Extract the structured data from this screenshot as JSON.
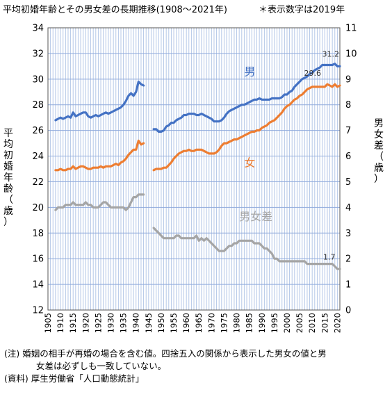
{
  "title": "平均初婚年齢とその男女差の長期推移(1908～2021年)",
  "note": "＊表示数字は2019年",
  "footer": {
    "line1": "(注) 婚姻の相手が再婚の場合を含む値。四捨五入の関係から表示した男女の値と男",
    "line2": "女差は必ずしも一致していない。",
    "line3": "(資料) 厚生労働省「人口動態統計」"
  },
  "chart_data": {
    "type": "line",
    "ylabel_left": [
      "平",
      "均",
      "初",
      "婚",
      "年",
      "齢",
      "（",
      "歳",
      "）"
    ],
    "ylabel_right": [
      "男",
      "女",
      "差",
      "（",
      "歳",
      "）"
    ],
    "ylim_left": [
      12,
      34
    ],
    "ylim_right": [
      0,
      11
    ],
    "yticks_left": [
      12,
      14,
      16,
      18,
      20,
      22,
      24,
      26,
      28,
      30,
      32,
      34
    ],
    "yticks_right": [
      0,
      1,
      2,
      3,
      4,
      5,
      6,
      7,
      8,
      9,
      10,
      11
    ],
    "xlim": [
      1905,
      2021
    ],
    "xtick_labels": [
      "1905",
      "1910",
      "1915",
      "1920",
      "1925",
      "1930",
      "1935",
      "1940",
      "1945",
      "1950",
      "1955",
      "1960",
      "1965",
      "1970",
      "1975",
      "1980",
      "1985",
      "1990",
      "1995",
      "2000",
      "2005",
      "2010",
      "2015",
      "2020"
    ],
    "grid": true,
    "colors": {
      "male": "#4472c4",
      "female": "#ed7d31",
      "gap": "#a5a5a5"
    },
    "series": [
      {
        "name": "男",
        "key": "male",
        "axis": "left",
        "segments": [
          {
            "x": [
              1908,
              1909,
              1910,
              1911,
              1912,
              1913,
              1914,
              1915,
              1916,
              1917,
              1918,
              1919,
              1920,
              1921,
              1922,
              1923,
              1924,
              1925,
              1926,
              1927,
              1928,
              1929,
              1930,
              1931,
              1932,
              1933,
              1934,
              1935,
              1936,
              1937,
              1938,
              1939,
              1940,
              1941,
              1942,
              1943
            ],
            "y": [
              26.8,
              26.9,
              27.0,
              26.9,
              27.0,
              27.1,
              27.0,
              27.4,
              27.1,
              27.2,
              27.3,
              27.4,
              27.4,
              27.1,
              27.0,
              27.1,
              27.2,
              27.1,
              27.2,
              27.3,
              27.4,
              27.3,
              27.4,
              27.5,
              27.6,
              27.7,
              27.8,
              28.0,
              28.3,
              28.7,
              28.9,
              28.7,
              29.0,
              29.8,
              29.6,
              29.5
            ]
          },
          {
            "x": [
              1947,
              1948,
              1949,
              1950,
              1951,
              1952,
              1953,
              1954,
              1955,
              1956,
              1957,
              1958,
              1959,
              1960,
              1961,
              1962,
              1963,
              1964,
              1965,
              1966,
              1967,
              1968,
              1969,
              1970,
              1971,
              1972,
              1973,
              1974,
              1975,
              1976,
              1977,
              1978,
              1979,
              1980,
              1981,
              1982,
              1983,
              1984,
              1985,
              1986,
              1987,
              1988,
              1989,
              1990,
              1991,
              1992,
              1993,
              1994,
              1995,
              1996,
              1997,
              1998,
              1999,
              2000,
              2001,
              2002,
              2003,
              2004,
              2005,
              2006,
              2007,
              2008,
              2009,
              2010,
              2011,
              2012,
              2013,
              2014,
              2015,
              2016,
              2017,
              2018,
              2019,
              2020,
              2021
            ],
            "y": [
              26.1,
              26.1,
              25.9,
              25.9,
              26.0,
              26.3,
              26.4,
              26.6,
              26.6,
              26.8,
              26.9,
              27.0,
              27.2,
              27.2,
              27.3,
              27.3,
              27.3,
              27.2,
              27.2,
              27.3,
              27.2,
              27.1,
              27.0,
              26.9,
              26.7,
              26.7,
              26.7,
              26.8,
              27.0,
              27.3,
              27.5,
              27.6,
              27.7,
              27.8,
              27.9,
              28.0,
              28.0,
              28.1,
              28.2,
              28.3,
              28.4,
              28.4,
              28.5,
              28.4,
              28.4,
              28.4,
              28.4,
              28.5,
              28.5,
              28.5,
              28.5,
              28.6,
              28.8,
              28.8,
              29.0,
              29.1,
              29.4,
              29.6,
              29.8,
              30.0,
              30.1,
              30.2,
              30.4,
              30.5,
              30.7,
              30.8,
              30.9,
              31.1,
              31.1,
              31.1,
              31.1,
              31.1,
              31.2,
              31.0,
              31.0
            ]
          }
        ]
      },
      {
        "name": "女",
        "key": "female",
        "axis": "left",
        "segments": [
          {
            "x": [
              1908,
              1909,
              1910,
              1911,
              1912,
              1913,
              1914,
              1915,
              1916,
              1917,
              1918,
              1919,
              1920,
              1921,
              1922,
              1923,
              1924,
              1925,
              1926,
              1927,
              1928,
              1929,
              1930,
              1931,
              1932,
              1933,
              1934,
              1935,
              1936,
              1937,
              1938,
              1939,
              1940,
              1941,
              1942,
              1943
            ],
            "y": [
              22.9,
              22.9,
              23.0,
              22.9,
              22.9,
              23.0,
              23.0,
              23.2,
              23.0,
              23.1,
              23.2,
              23.2,
              23.1,
              23.0,
              23.0,
              23.1,
              23.1,
              23.1,
              23.2,
              23.1,
              23.2,
              23.2,
              23.2,
              23.3,
              23.4,
              23.3,
              23.5,
              23.6,
              23.8,
              24.1,
              24.3,
              24.5,
              24.5,
              25.2,
              24.9,
              25.0
            ]
          },
          {
            "x": [
              1947,
              1948,
              1949,
              1950,
              1951,
              1952,
              1953,
              1954,
              1955,
              1956,
              1957,
              1958,
              1959,
              1960,
              1961,
              1962,
              1963,
              1964,
              1965,
              1966,
              1967,
              1968,
              1969,
              1970,
              1971,
              1972,
              1973,
              1974,
              1975,
              1976,
              1977,
              1978,
              1979,
              1980,
              1981,
              1982,
              1983,
              1984,
              1985,
              1986,
              1987,
              1988,
              1989,
              1990,
              1991,
              1992,
              1993,
              1994,
              1995,
              1996,
              1997,
              1998,
              1999,
              2000,
              2001,
              2002,
              2003,
              2004,
              2005,
              2006,
              2007,
              2008,
              2009,
              2010,
              2011,
              2012,
              2013,
              2014,
              2015,
              2016,
              2017,
              2018,
              2019,
              2020,
              2021
            ],
            "y": [
              22.9,
              23.0,
              23.0,
              23.0,
              23.1,
              23.1,
              23.3,
              23.5,
              23.8,
              24.0,
              24.2,
              24.3,
              24.4,
              24.4,
              24.5,
              24.4,
              24.4,
              24.5,
              24.5,
              24.5,
              24.4,
              24.3,
              24.2,
              24.2,
              24.2,
              24.3,
              24.5,
              24.8,
              25.0,
              25.0,
              25.1,
              25.2,
              25.3,
              25.3,
              25.4,
              25.5,
              25.6,
              25.7,
              25.8,
              25.9,
              25.9,
              26.0,
              26.0,
              26.2,
              26.3,
              26.4,
              26.6,
              26.7,
              26.8,
              27.0,
              27.2,
              27.4,
              27.7,
              27.9,
              28.0,
              28.2,
              28.4,
              28.5,
              28.7,
              28.8,
              29.0,
              29.2,
              29.3,
              29.4,
              29.4,
              29.4,
              29.4,
              29.4,
              29.4,
              29.6,
              29.5,
              29.4,
              29.6,
              29.4,
              29.5
            ]
          }
        ]
      },
      {
        "name": "男女差",
        "key": "gap",
        "axis": "right",
        "segments": [
          {
            "x": [
              1908,
              1909,
              1910,
              1911,
              1912,
              1913,
              1914,
              1915,
              1916,
              1917,
              1918,
              1919,
              1920,
              1921,
              1922,
              1923,
              1924,
              1925,
              1926,
              1927,
              1928,
              1929,
              1930,
              1931,
              1932,
              1933,
              1934,
              1935,
              1936,
              1937,
              1938,
              1939,
              1940,
              1941,
              1942,
              1943
            ],
            "y": [
              3.9,
              4.0,
              4.0,
              4.0,
              4.1,
              4.1,
              4.1,
              4.2,
              4.1,
              4.1,
              4.1,
              4.1,
              4.2,
              4.1,
              4.1,
              4.0,
              4.0,
              4.0,
              4.1,
              4.2,
              4.2,
              4.1,
              4.0,
              4.0,
              4.0,
              4.0,
              4.0,
              4.0,
              3.9,
              4.0,
              4.2,
              4.4,
              4.4,
              4.5,
              4.5,
              4.5
            ]
          },
          {
            "x": [
              1947,
              1948,
              1949,
              1950,
              1951,
              1952,
              1953,
              1954,
              1955,
              1956,
              1957,
              1958,
              1959,
              1960,
              1961,
              1962,
              1963,
              1964,
              1965,
              1966,
              1967,
              1968,
              1969,
              1970,
              1971,
              1972,
              1973,
              1974,
              1975,
              1976,
              1977,
              1978,
              1979,
              1980,
              1981,
              1982,
              1983,
              1984,
              1985,
              1986,
              1987,
              1988,
              1989,
              1990,
              1991,
              1992,
              1993,
              1994,
              1995,
              1996,
              1997,
              1998,
              1999,
              2000,
              2001,
              2002,
              2003,
              2004,
              2005,
              2006,
              2007,
              2008,
              2009,
              2010,
              2011,
              2012,
              2013,
              2014,
              2015,
              2016,
              2017,
              2018,
              2019,
              2020,
              2021
            ],
            "y": [
              3.2,
              3.1,
              3.0,
              2.9,
              2.8,
              2.8,
              2.8,
              2.8,
              2.8,
              2.9,
              2.9,
              2.8,
              2.8,
              2.8,
              2.8,
              2.8,
              2.8,
              2.9,
              2.7,
              2.8,
              2.7,
              2.8,
              2.7,
              2.6,
              2.5,
              2.4,
              2.3,
              2.3,
              2.3,
              2.4,
              2.5,
              2.5,
              2.6,
              2.6,
              2.7,
              2.7,
              2.7,
              2.7,
              2.7,
              2.7,
              2.6,
              2.6,
              2.6,
              2.5,
              2.4,
              2.4,
              2.3,
              2.2,
              2.0,
              2.0,
              1.9,
              1.9,
              1.9,
              1.9,
              1.9,
              1.9,
              1.9,
              1.9,
              1.9,
              1.9,
              1.9,
              1.8,
              1.8,
              1.8,
              1.8,
              1.8,
              1.8,
              1.8,
              1.8,
              1.8,
              1.8,
              1.8,
              1.7,
              1.6,
              1.6
            ]
          }
        ]
      }
    ],
    "series_labels": {
      "male": "男",
      "female": "女",
      "gap": "男女差"
    },
    "annotations": [
      {
        "text": "31.2",
        "x": 2019,
        "y": 31.2,
        "axis": "left"
      },
      {
        "text": "29.6",
        "x": 2019,
        "y": 29.6,
        "axis": "left"
      },
      {
        "text": "1.7",
        "x": 2019,
        "y": 1.7,
        "axis": "right"
      }
    ]
  }
}
